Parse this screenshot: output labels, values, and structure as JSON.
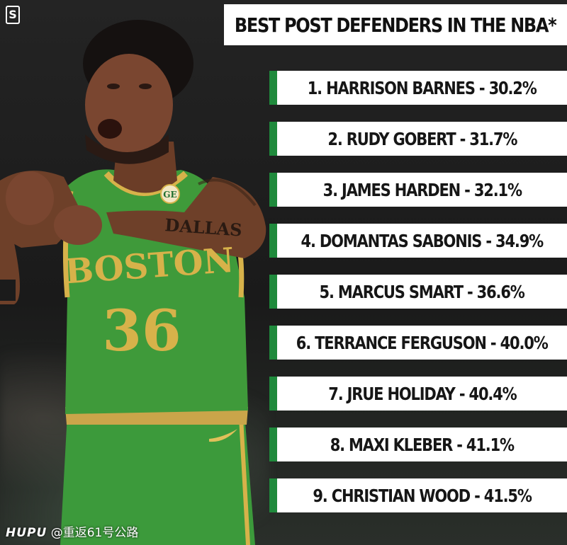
{
  "header": {
    "title": "BEST POST DEFENDERS IN THE NBA*",
    "brand_logo": "S"
  },
  "player": {
    "jersey_team": "BOSTON",
    "jersey_number": "36",
    "arm_tattoo": "DALLAS",
    "jersey_patch": "GE"
  },
  "rankings": [
    "1. HARRISON BARNES - 30.2%",
    "2. RUDY GOBERT - 31.7%",
    "3. JAMES HARDEN - 32.1%",
    "4. DOMANTAS SABONIS - 34.9%",
    "5. MARCUS SMART - 36.6%",
    "6. TERRANCE FERGUSON - 40.0%",
    "7. JRUE HOLIDAY - 40.4%",
    "8. MAXI KLEBER - 41.1%",
    "9. CHRISTIAN WOOD - 41.5%"
  ],
  "watermark": {
    "brand": "HUPU",
    "handle": "@重返61号公路"
  },
  "colors": {
    "accent_green": "#1f8a3c",
    "jersey_green": "#3f9a3a",
    "jersey_gold": "#d7b24a",
    "box_white": "#ffffff"
  }
}
